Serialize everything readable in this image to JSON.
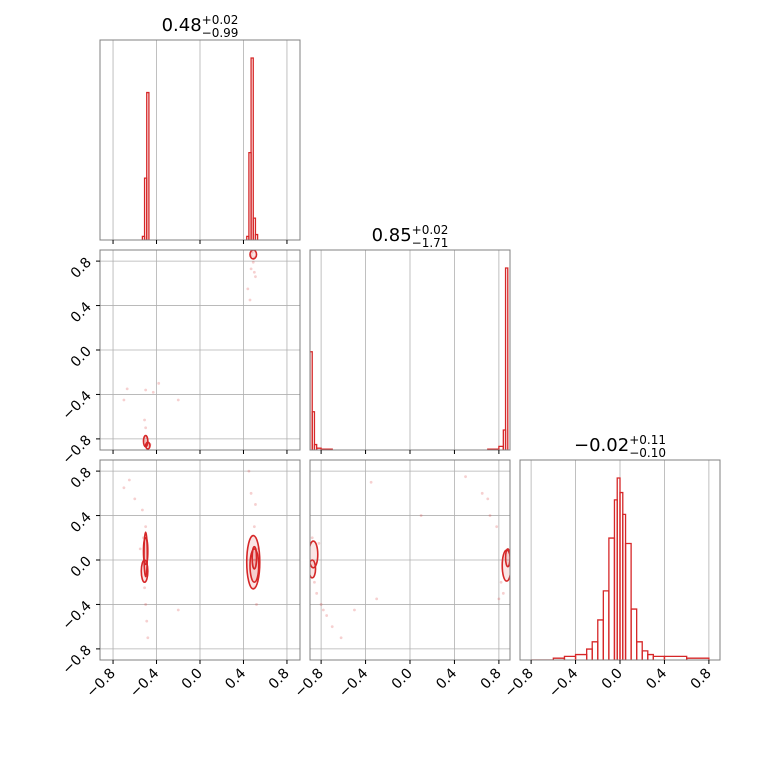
{
  "chart_data": {
    "type": "corner",
    "parameter_ranges": [
      [
        -0.92,
        0.92
      ],
      [
        -0.9,
        0.9
      ],
      [
        -0.9,
        0.9
      ]
    ],
    "xticks": [
      -0.8,
      -0.4,
      0.0,
      0.4,
      0.8
    ],
    "yticks": [
      -0.8,
      -0.4,
      0.0,
      0.4,
      0.8
    ],
    "tick_labels": [
      "−0.8",
      "−0.4",
      "0.0",
      "0.4",
      "0.8"
    ],
    "color": "#d62728",
    "grid": true,
    "titles": [
      {
        "median": "0.48",
        "plus": "+0.02",
        "minus": "−0.99"
      },
      {
        "median": "0.85",
        "plus": "+0.02",
        "minus": "−1.71"
      },
      {
        "median": "−0.02",
        "plus": "+0.11",
        "minus": "−0.10"
      }
    ],
    "histograms": [
      {
        "param": 0,
        "bins": [
          {
            "x0": -0.53,
            "x1": -0.51,
            "h": 0.02
          },
          {
            "x0": -0.51,
            "x1": -0.49,
            "h": 0.34
          },
          {
            "x0": -0.49,
            "x1": -0.47,
            "h": 0.81
          },
          {
            "x0": 0.43,
            "x1": 0.45,
            "h": 0.02
          },
          {
            "x0": 0.45,
            "x1": 0.47,
            "h": 0.48
          },
          {
            "x0": 0.47,
            "x1": 0.49,
            "h": 1.0
          },
          {
            "x0": 0.49,
            "x1": 0.51,
            "h": 0.12
          },
          {
            "x0": 0.51,
            "x1": 0.53,
            "h": 0.03
          }
        ]
      },
      {
        "param": 1,
        "bins": [
          {
            "x0": -0.9,
            "x1": -0.88,
            "h": 0.54
          },
          {
            "x0": -0.88,
            "x1": -0.86,
            "h": 0.21
          },
          {
            "x0": -0.86,
            "x1": -0.84,
            "h": 0.03
          },
          {
            "x0": -0.84,
            "x1": -0.8,
            "h": 0.01
          },
          {
            "x0": -0.8,
            "x1": -0.7,
            "h": 0.005
          },
          {
            "x0": 0.7,
            "x1": 0.8,
            "h": 0.005
          },
          {
            "x0": 0.8,
            "x1": 0.84,
            "h": 0.02
          },
          {
            "x0": 0.84,
            "x1": 0.86,
            "h": 0.11
          },
          {
            "x0": 0.86,
            "x1": 0.88,
            "h": 1.0
          }
        ]
      },
      {
        "param": 2,
        "bins": [
          {
            "x0": -0.8,
            "x1": -0.6,
            "h": 0.0
          },
          {
            "x0": -0.6,
            "x1": -0.5,
            "h": 0.01
          },
          {
            "x0": -0.5,
            "x1": -0.4,
            "h": 0.02
          },
          {
            "x0": -0.4,
            "x1": -0.3,
            "h": 0.03
          },
          {
            "x0": -0.3,
            "x1": -0.25,
            "h": 0.06
          },
          {
            "x0": -0.25,
            "x1": -0.2,
            "h": 0.1
          },
          {
            "x0": -0.2,
            "x1": -0.15,
            "h": 0.22
          },
          {
            "x0": -0.15,
            "x1": -0.1,
            "h": 0.38
          },
          {
            "x0": -0.1,
            "x1": -0.05,
            "h": 0.67
          },
          {
            "x0": -0.05,
            "x1": -0.025,
            "h": 0.88
          },
          {
            "x0": -0.025,
            "x1": 0.0,
            "h": 1.0
          },
          {
            "x0": 0.0,
            "x1": 0.025,
            "h": 0.92
          },
          {
            "x0": 0.025,
            "x1": 0.05,
            "h": 0.8
          },
          {
            "x0": 0.05,
            "x1": 0.1,
            "h": 0.64
          },
          {
            "x0": 0.1,
            "x1": 0.15,
            "h": 0.28
          },
          {
            "x0": 0.15,
            "x1": 0.2,
            "h": 0.1
          },
          {
            "x0": 0.2,
            "x1": 0.25,
            "h": 0.05
          },
          {
            "x0": 0.25,
            "x1": 0.3,
            "h": 0.03
          },
          {
            "x0": 0.3,
            "x1": 0.4,
            "h": 0.02
          },
          {
            "x0": 0.4,
            "x1": 0.6,
            "h": 0.02
          },
          {
            "x0": 0.6,
            "x1": 0.8,
            "h": 0.01
          }
        ]
      }
    ],
    "scatter_panels": [
      {
        "x_param": 0,
        "y_param": 1,
        "points": [
          [
            0.47,
            0.85
          ],
          [
            0.48,
            0.88
          ],
          [
            0.5,
            0.83
          ],
          [
            0.49,
            0.79
          ],
          [
            0.47,
            0.73
          ],
          [
            0.5,
            0.7
          ],
          [
            0.44,
            0.55
          ],
          [
            0.46,
            0.45
          ],
          [
            0.51,
            0.66
          ],
          [
            -0.5,
            -0.82
          ],
          [
            -0.49,
            -0.79
          ],
          [
            -0.5,
            -0.7
          ],
          [
            -0.51,
            -0.63
          ],
          [
            -0.48,
            -0.86
          ],
          [
            -0.46,
            -0.85
          ],
          [
            -0.67,
            -0.35
          ],
          [
            -0.5,
            -0.36
          ],
          [
            -0.43,
            -0.38
          ],
          [
            -0.38,
            -0.3
          ],
          [
            -0.7,
            -0.45
          ],
          [
            -0.2,
            -0.45
          ]
        ],
        "contours": [
          {
            "cx": 0.49,
            "cy": 0.86,
            "rx": 0.03,
            "ry": 0.04
          },
          {
            "cx": -0.5,
            "cy": -0.82,
            "rx": 0.02,
            "ry": 0.05
          },
          {
            "cx": -0.48,
            "cy": -0.86,
            "rx": 0.02,
            "ry": 0.03
          }
        ]
      },
      {
        "x_param": 0,
        "y_param": 2,
        "points": [
          [
            -0.52,
            0.2
          ],
          [
            -0.5,
            0.3
          ],
          [
            -0.51,
            -0.25
          ],
          [
            -0.5,
            -0.4
          ],
          [
            -0.49,
            -0.55
          ],
          [
            -0.48,
            -0.7
          ],
          [
            -0.53,
            0.45
          ],
          [
            -0.6,
            0.55
          ],
          [
            -0.65,
            0.72
          ],
          [
            -0.7,
            0.65
          ],
          [
            -0.55,
            0.1
          ],
          [
            -0.5,
            -0.1
          ],
          [
            0.5,
            0.3
          ],
          [
            0.51,
            0.5
          ],
          [
            0.47,
            0.6
          ],
          [
            0.5,
            -0.25
          ],
          [
            0.52,
            -0.4
          ],
          [
            0.45,
            0.8
          ],
          [
            0.5,
            0.0
          ],
          [
            -0.2,
            -0.45
          ],
          [
            0.53,
            0.1
          ]
        ],
        "contours": [
          {
            "cx": -0.5,
            "cy": 0.08,
            "rx": 0.02,
            "ry": 0.12
          },
          {
            "cx": -0.51,
            "cy": -0.1,
            "rx": 0.03,
            "ry": 0.1
          },
          {
            "cx": -0.5,
            "cy": 0.05,
            "rx": 0.015,
            "ry": 0.2
          },
          {
            "cx": 0.5,
            "cy": -0.05,
            "rx": 0.04,
            "ry": 0.15
          },
          {
            "cx": 0.5,
            "cy": 0.02,
            "rx": 0.02,
            "ry": 0.1
          },
          {
            "cx": 0.49,
            "cy": -0.02,
            "rx": 0.06,
            "ry": 0.24
          }
        ]
      },
      {
        "x_param": 1,
        "y_param": 2,
        "points": [
          [
            -0.88,
            0.2
          ],
          [
            -0.86,
            -0.2
          ],
          [
            -0.84,
            -0.3
          ],
          [
            -0.8,
            -0.4
          ],
          [
            -0.75,
            -0.5
          ],
          [
            -0.7,
            -0.6
          ],
          [
            -0.62,
            -0.7
          ],
          [
            -0.78,
            -0.45
          ],
          [
            -0.5,
            -0.45
          ],
          [
            -0.3,
            -0.35
          ],
          [
            0.1,
            0.4
          ],
          [
            -0.35,
            0.7
          ],
          [
            0.5,
            0.75
          ],
          [
            0.65,
            0.6
          ],
          [
            0.72,
            0.4
          ],
          [
            0.78,
            0.3
          ],
          [
            0.82,
            -0.2
          ],
          [
            0.84,
            -0.3
          ],
          [
            0.8,
            -0.35
          ],
          [
            0.7,
            0.55
          ],
          [
            -0.82,
            0.15
          ]
        ],
        "contours": [
          {
            "cx": -0.87,
            "cy": 0.05,
            "rx": 0.04,
            "ry": 0.12
          },
          {
            "cx": -0.88,
            "cy": -0.08,
            "rx": 0.03,
            "ry": 0.08
          },
          {
            "cx": 0.87,
            "cy": -0.05,
            "rx": 0.04,
            "ry": 0.14
          },
          {
            "cx": 0.88,
            "cy": 0.02,
            "rx": 0.02,
            "ry": 0.08
          }
        ]
      }
    ]
  }
}
